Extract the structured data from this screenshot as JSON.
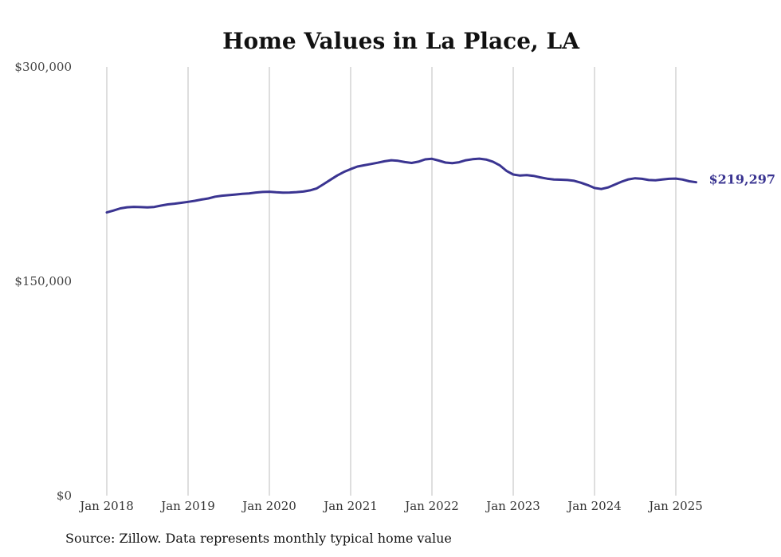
{
  "chart_data": {
    "type": "line",
    "title": "Home Values in La Place, LA",
    "source": "Source: Zillow. Data represents monthly typical home value",
    "y_ticks": [
      {
        "value": 300000,
        "label": "$300,000"
      },
      {
        "value": 150000,
        "label": "$150,000"
      },
      {
        "value": 0,
        "label": "$0"
      }
    ],
    "ylim": [
      0,
      300000
    ],
    "x_ticks": [
      {
        "date": "2018-01",
        "label": "Jan 2018"
      },
      {
        "date": "2019-01",
        "label": "Jan 2019"
      },
      {
        "date": "2020-01",
        "label": "Jan 2020"
      },
      {
        "date": "2021-01",
        "label": "Jan 2021"
      },
      {
        "date": "2022-01",
        "label": "Jan 2022"
      },
      {
        "date": "2023-01",
        "label": "Jan 2023"
      },
      {
        "date": "2024-01",
        "label": "Jan 2024"
      },
      {
        "date": "2025-01",
        "label": "Jan 2025"
      }
    ],
    "xlim": [
      "2018-01",
      "2025-01"
    ],
    "grid": "vertical",
    "line_color": "#3a3491",
    "end_label": "$219,297",
    "series": [
      {
        "x": [
          "2018-01",
          "2018-02",
          "2018-03",
          "2018-04",
          "2018-05",
          "2018-06",
          "2018-07",
          "2018-08",
          "2018-09",
          "2018-10",
          "2018-11",
          "2018-12",
          "2019-01",
          "2019-02",
          "2019-03",
          "2019-04",
          "2019-05",
          "2019-06",
          "2019-07",
          "2019-08",
          "2019-09",
          "2019-10",
          "2019-11",
          "2019-12",
          "2020-01",
          "2020-02",
          "2020-03",
          "2020-04",
          "2020-05",
          "2020-06",
          "2020-07",
          "2020-08",
          "2020-09",
          "2020-10",
          "2020-11",
          "2020-12",
          "2021-01",
          "2021-02",
          "2021-03",
          "2021-04",
          "2021-05",
          "2021-06",
          "2021-07",
          "2021-08",
          "2021-09",
          "2021-10",
          "2021-11",
          "2021-12",
          "2022-01",
          "2022-02",
          "2022-03",
          "2022-04",
          "2022-05",
          "2022-06",
          "2022-07",
          "2022-08",
          "2022-09",
          "2022-10",
          "2022-11",
          "2022-12",
          "2023-01",
          "2023-02",
          "2023-03",
          "2023-04",
          "2023-05",
          "2023-06",
          "2023-07",
          "2023-08",
          "2023-09",
          "2023-10",
          "2023-11",
          "2023-12",
          "2024-01",
          "2024-02",
          "2024-03",
          "2024-04",
          "2024-05",
          "2024-06",
          "2024-07",
          "2024-08",
          "2024-09",
          "2024-10",
          "2024-11",
          "2024-12",
          "2025-01",
          "2025-02",
          "2025-03",
          "2025-04"
        ],
        "values": [
          198200,
          199500,
          201000,
          201800,
          202100,
          201900,
          201700,
          202000,
          203000,
          203800,
          204300,
          204900,
          205600,
          206300,
          207200,
          208000,
          209200,
          209900,
          210300,
          210700,
          211200,
          211500,
          212100,
          212500,
          212700,
          212300,
          212000,
          212100,
          212400,
          212800,
          213600,
          215000,
          218000,
          221000,
          224000,
          226500,
          228500,
          230300,
          231200,
          232100,
          233000,
          234000,
          234700,
          234300,
          233400,
          232800,
          233700,
          235300,
          235700,
          234500,
          233100,
          232700,
          233300,
          234700,
          235400,
          235800,
          235200,
          233700,
          231200,
          227300,
          224700,
          224000,
          224300,
          223800,
          222700,
          221800,
          221200,
          221100,
          220900,
          220300,
          219000,
          217300,
          215300,
          214600,
          215700,
          217700,
          219700,
          221300,
          222100,
          221700,
          220900,
          220700,
          221200,
          221700,
          221900,
          221200,
          220000,
          219297
        ]
      }
    ]
  }
}
